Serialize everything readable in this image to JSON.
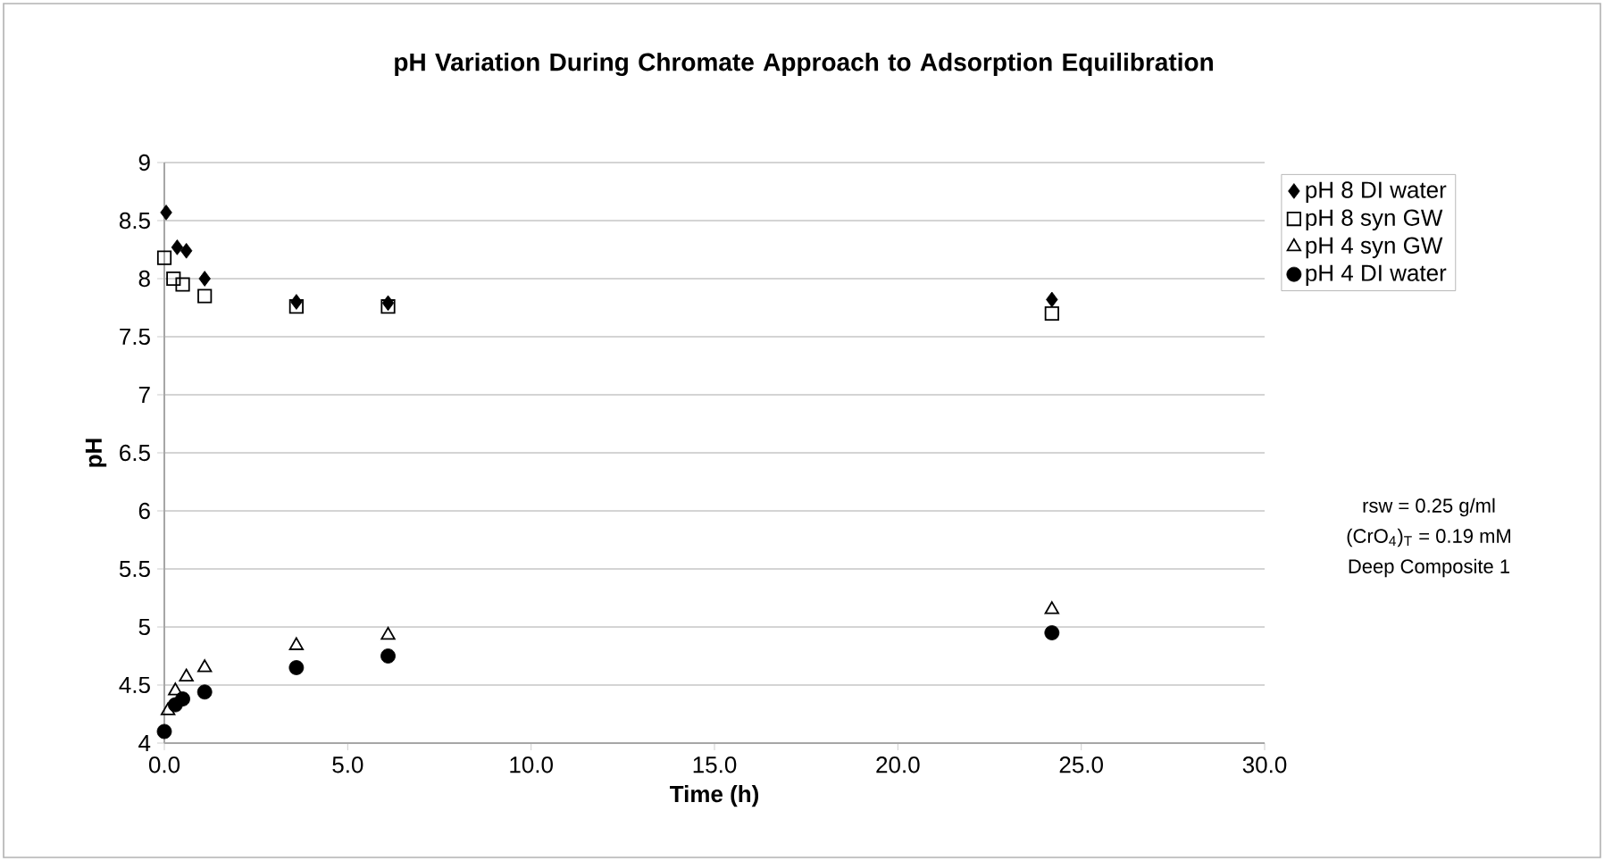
{
  "chart_data": {
    "type": "scatter",
    "title": "pH Variation During Chromate Approach to Adsorption Equilibration",
    "xlabel": "Time (h)",
    "ylabel": "pH",
    "xlim": [
      0,
      30
    ],
    "ylim": [
      4,
      9
    ],
    "xticks": [
      {
        "value": 0,
        "label": "0.0"
      },
      {
        "value": 5,
        "label": "5.0"
      },
      {
        "value": 10,
        "label": "10.0"
      },
      {
        "value": 15,
        "label": "15.0"
      },
      {
        "value": 20,
        "label": "20.0"
      },
      {
        "value": 25,
        "label": "25.0"
      },
      {
        "value": 30,
        "label": "30.0"
      }
    ],
    "yticks": [
      4,
      4.5,
      5,
      5.5,
      6,
      6.5,
      7,
      7.5,
      8,
      8.5,
      9
    ],
    "grid": "y",
    "legend": "right",
    "series": [
      {
        "name": "pH 8 DI water",
        "color": "#000000",
        "marker": "diamond",
        "x": [
          0.05,
          0.35,
          0.6,
          1.1,
          3.6,
          6.1,
          24.2
        ],
        "values": [
          8.57,
          8.27,
          8.24,
          8.0,
          7.8,
          7.79,
          7.82
        ]
      },
      {
        "name": "pH 8 syn GW",
        "color": "#000000",
        "marker": "square",
        "x": [
          0.0,
          0.25,
          0.5,
          1.1,
          3.6,
          6.1,
          24.2
        ],
        "values": [
          8.18,
          8.0,
          7.95,
          7.85,
          7.76,
          7.76,
          7.7
        ]
      },
      {
        "name": "pH 4 syn GW",
        "color": "#000000",
        "marker": "triangle",
        "x": [
          0.1,
          0.3,
          0.6,
          1.1,
          3.6,
          6.1,
          24.2
        ],
        "values": [
          4.28,
          4.45,
          4.57,
          4.65,
          4.84,
          4.93,
          5.15
        ]
      },
      {
        "name": "pH 4 DI water",
        "color": "#000000",
        "marker": "circle",
        "x": [
          0.0,
          0.3,
          0.5,
          1.1,
          3.6,
          6.1,
          24.2
        ],
        "values": [
          4.1,
          4.33,
          4.38,
          4.44,
          4.65,
          4.75,
          4.95
        ]
      }
    ],
    "annotations": [
      "rsw = 0.25 g/ml",
      "(CrO$_{4}$)$_{T}$ = 0.19 mM",
      "Deep Composite 1"
    ]
  }
}
